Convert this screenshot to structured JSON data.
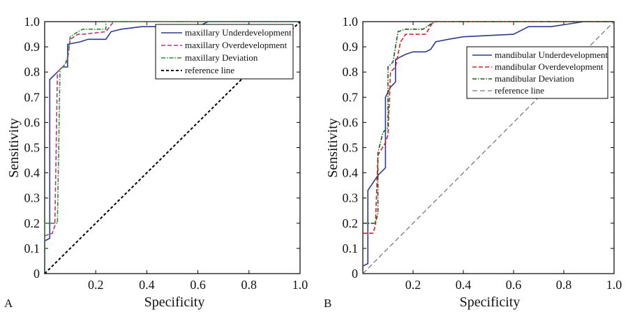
{
  "chart_data": [
    {
      "type": "line",
      "panel_label": "A",
      "xlabel": "Specificity",
      "ylabel": "Sensitivity",
      "xlim": [
        0,
        1.0
      ],
      "ylim": [
        0,
        1.0
      ],
      "x_ticks": [
        "0.2",
        "0.4",
        "0.6",
        "0.8",
        "1.0"
      ],
      "y_ticks": [
        "0",
        "0.1",
        "0.2",
        "0.3",
        "0.4",
        "0.5",
        "0.6",
        "0.7",
        "0.8",
        "0.9",
        "1.0"
      ],
      "grid": false,
      "legend_position": "top-right",
      "series": [
        {
          "name": "maxillary Underdevelopment",
          "color": "#2e3a8c",
          "dash": "solid",
          "points": [
            [
              0,
              0
            ],
            [
              0,
              0.13
            ],
            [
              0.02,
              0.14
            ],
            [
              0.02,
              0.77
            ],
            [
              0.05,
              0.8
            ],
            [
              0.07,
              0.82
            ],
            [
              0.09,
              0.82
            ],
            [
              0.09,
              0.91
            ],
            [
              0.14,
              0.92
            ],
            [
              0.17,
              0.93
            ],
            [
              0.24,
              0.93
            ],
            [
              0.26,
              0.96
            ],
            [
              0.3,
              0.97
            ],
            [
              0.38,
              0.98
            ],
            [
              0.6,
              0.98
            ],
            [
              0.64,
              1.0
            ],
            [
              1.0,
              1.0
            ]
          ]
        },
        {
          "name": "maxillary Overdevelopment",
          "color": "#c0307a",
          "dash": "dashed",
          "points": [
            [
              0,
              0
            ],
            [
              0,
              0.15
            ],
            [
              0.03,
              0.16
            ],
            [
              0.04,
              0.19
            ],
            [
              0.05,
              0.8
            ],
            [
              0.08,
              0.83
            ],
            [
              0.09,
              0.85
            ],
            [
              0.1,
              0.93
            ],
            [
              0.13,
              0.95
            ],
            [
              0.15,
              0.95
            ],
            [
              0.24,
              0.96
            ],
            [
              0.27,
              1.0
            ],
            [
              1.0,
              1.0
            ]
          ]
        },
        {
          "name": "maxillary Deviation",
          "color": "#2e8b2e",
          "dash": "dashdot",
          "points": [
            [
              0,
              0
            ],
            [
              0,
              0.2
            ],
            [
              0.05,
              0.2
            ],
            [
              0.06,
              0.81
            ],
            [
              0.08,
              0.83
            ],
            [
              0.09,
              0.86
            ],
            [
              0.1,
              0.94
            ],
            [
              0.13,
              0.96
            ],
            [
              0.15,
              0.97
            ],
            [
              0.24,
              0.97
            ],
            [
              0.24,
              1.0
            ],
            [
              1.0,
              1.0
            ]
          ]
        },
        {
          "name": "reference line",
          "color": "#000000",
          "dash": "dashed-ref",
          "points": [
            [
              0,
              0
            ],
            [
              1.0,
              1.0
            ]
          ]
        }
      ]
    },
    {
      "type": "line",
      "panel_label": "B",
      "xlabel": "Specificity",
      "ylabel": "Sensitivity",
      "xlim": [
        0,
        1.0
      ],
      "ylim": [
        0,
        1.0
      ],
      "x_ticks": [
        "0.2",
        "0.4",
        "0.6",
        "0.8",
        "1.0"
      ],
      "y_ticks": [
        "0",
        "0.1",
        "0.2",
        "0.3",
        "0.4",
        "0.5",
        "0.6",
        "0.7",
        "0.8",
        "0.9",
        "1.0"
      ],
      "grid": false,
      "legend_position": "upper-right",
      "series": [
        {
          "name": "mandibular Underdevelopment",
          "color": "#2e3a8c",
          "dash": "solid",
          "points": [
            [
              0,
              0.03
            ],
            [
              0.02,
              0.04
            ],
            [
              0.02,
              0.33
            ],
            [
              0.06,
              0.39
            ],
            [
              0.09,
              0.42
            ],
            [
              0.09,
              0.7
            ],
            [
              0.11,
              0.74
            ],
            [
              0.13,
              0.76
            ],
            [
              0.13,
              0.85
            ],
            [
              0.17,
              0.87
            ],
            [
              0.2,
              0.88
            ],
            [
              0.25,
              0.88
            ],
            [
              0.27,
              0.89
            ],
            [
              0.29,
              0.92
            ],
            [
              0.34,
              0.93
            ],
            [
              0.4,
              0.94
            ],
            [
              0.6,
              0.95
            ],
            [
              0.66,
              0.98
            ],
            [
              0.75,
              0.98
            ],
            [
              0.88,
              1.0
            ],
            [
              1.0,
              1.0
            ]
          ]
        },
        {
          "name": "mandibular Overdevelopment",
          "color": "#d62020",
          "dash": "dashed",
          "points": [
            [
              0,
              0.16
            ],
            [
              0.04,
              0.16
            ],
            [
              0.05,
              0.19
            ],
            [
              0.06,
              0.47
            ],
            [
              0.09,
              0.52
            ],
            [
              0.1,
              0.55
            ],
            [
              0.11,
              0.8
            ],
            [
              0.13,
              0.82
            ],
            [
              0.15,
              0.92
            ],
            [
              0.17,
              0.95
            ],
            [
              0.21,
              0.95
            ],
            [
              0.25,
              0.95
            ],
            [
              0.28,
              1.0
            ],
            [
              1.0,
              1.0
            ]
          ]
        },
        {
          "name": "mandibular Deviation",
          "color": "#1a5a1a",
          "dash": "dashdot",
          "points": [
            [
              0,
              0.2
            ],
            [
              0.05,
              0.2
            ],
            [
              0.06,
              0.24
            ],
            [
              0.06,
              0.48
            ],
            [
              0.08,
              0.56
            ],
            [
              0.1,
              0.58
            ],
            [
              0.1,
              0.82
            ],
            [
              0.12,
              0.84
            ],
            [
              0.14,
              0.96
            ],
            [
              0.17,
              0.97
            ],
            [
              0.24,
              0.97
            ],
            [
              0.27,
              0.99
            ],
            [
              0.29,
              1.0
            ],
            [
              1.0,
              1.0
            ]
          ]
        },
        {
          "name": "reference line",
          "color": "#555555",
          "dash": "dashed-ref-thin",
          "points": [
            [
              0,
              0
            ],
            [
              1.0,
              1.0
            ]
          ]
        }
      ]
    }
  ]
}
